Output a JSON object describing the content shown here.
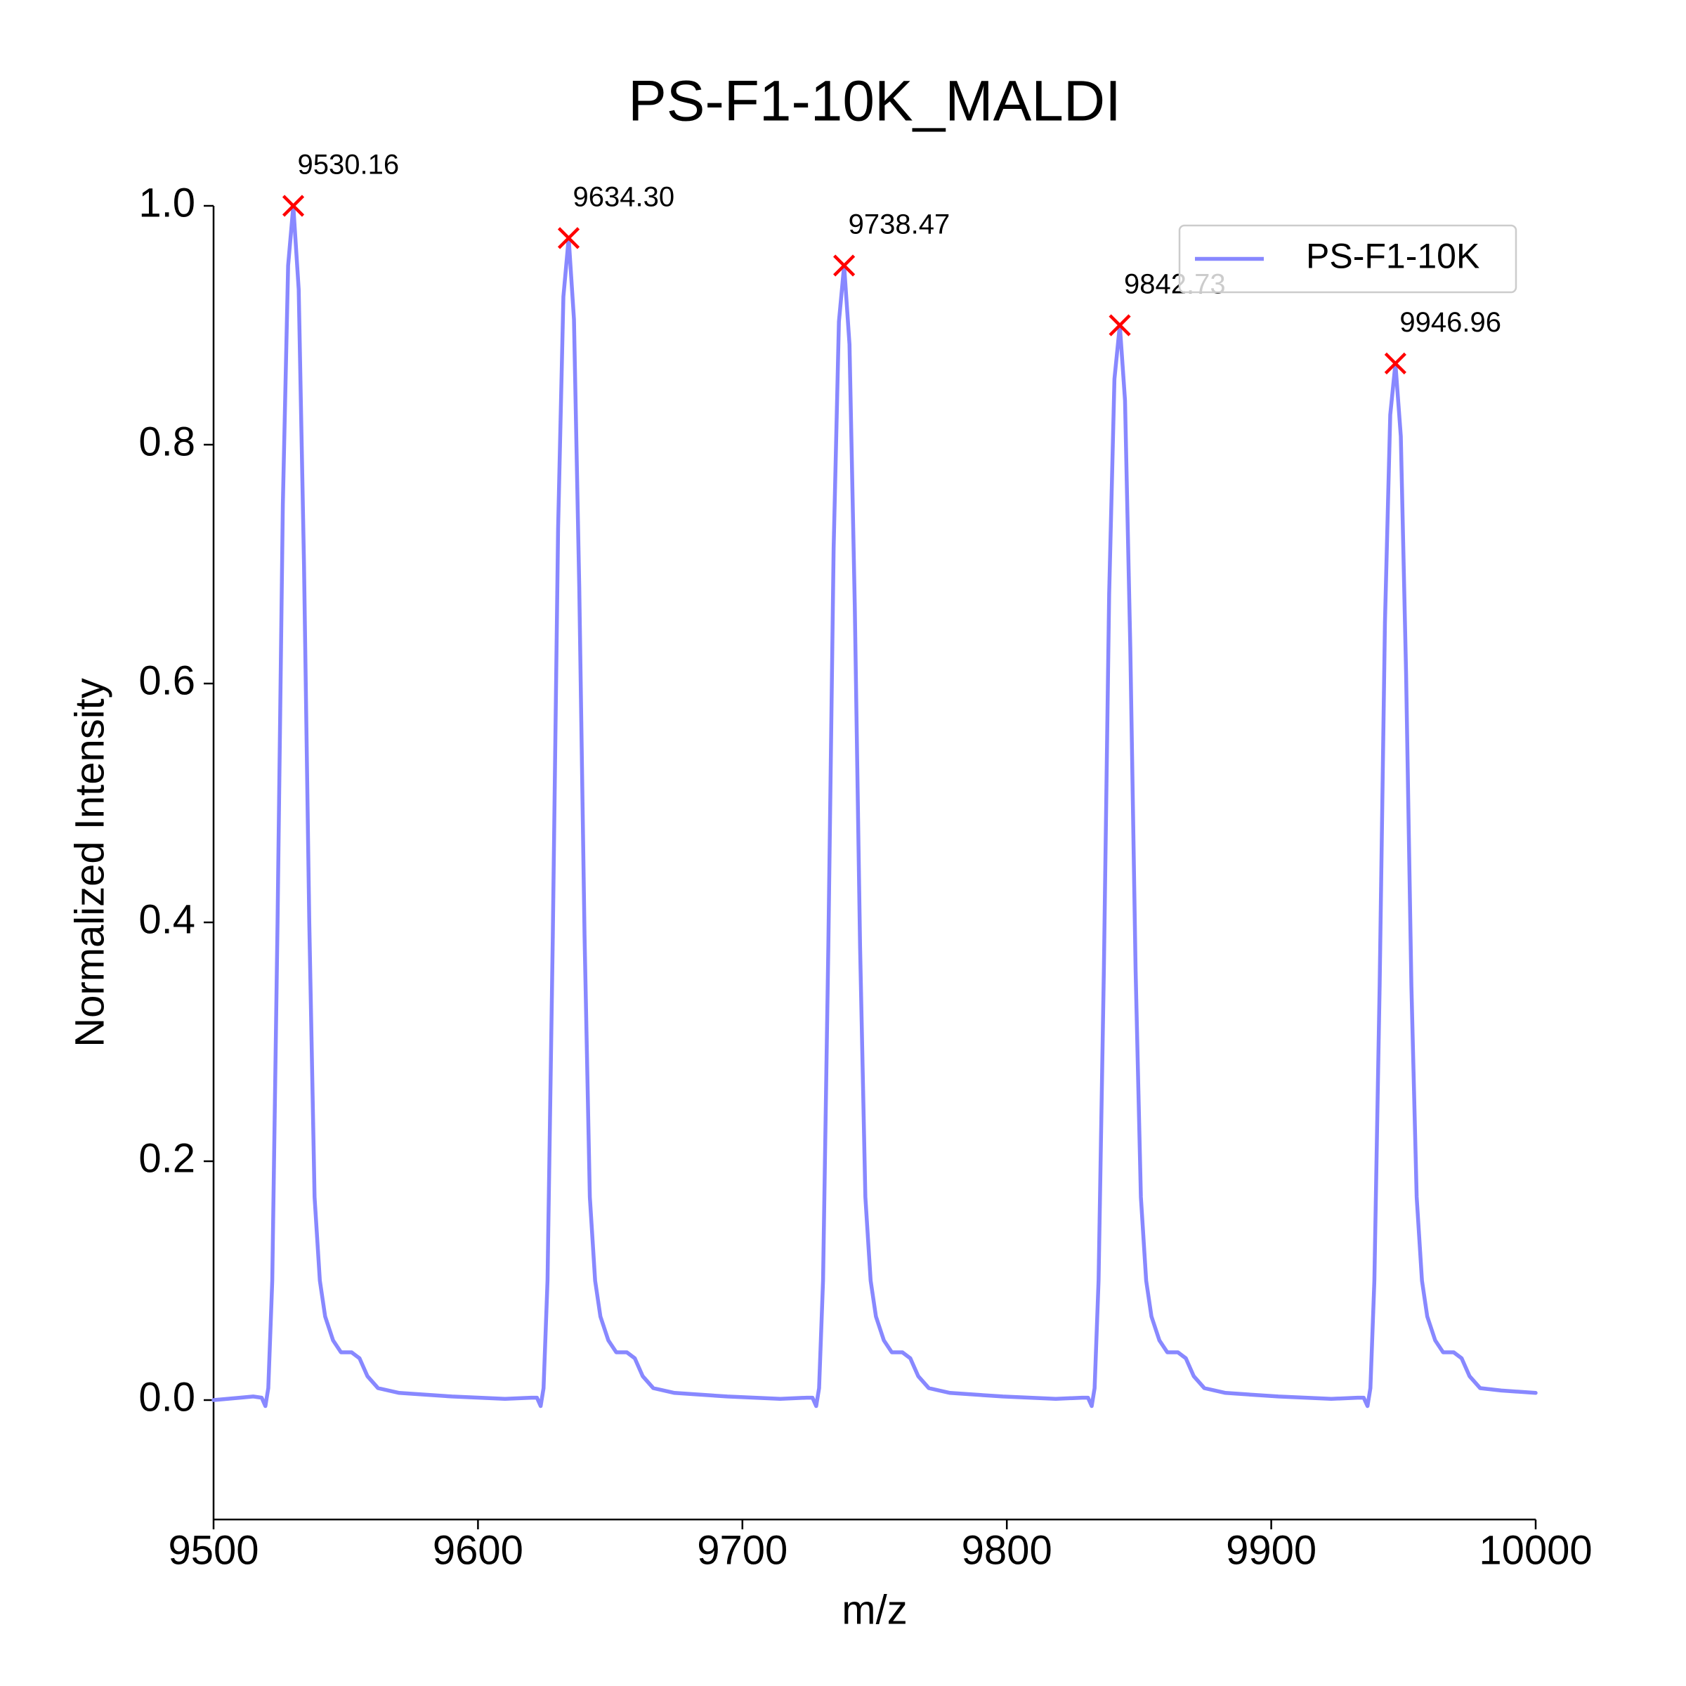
{
  "chart_data": {
    "type": "line",
    "title": "PS-F1-10K_MALDI",
    "xlabel": "m/z",
    "ylabel": "Normalized Intensity",
    "xlim": [
      9500,
      10000
    ],
    "ylim": [
      -0.1,
      1.0
    ],
    "xticks": [
      9500,
      9600,
      9700,
      9800,
      9900,
      10000
    ],
    "yticks": [
      {
        "value": 0,
        "label": "0.0"
      },
      0.2,
      0.4,
      0.6,
      0.8,
      {
        "value": 1,
        "label": "1.0"
      }
    ],
    "legend": "upper right",
    "series": [
      {
        "name": "PS-F1-10K",
        "color": "#8888ff",
        "x": [
          9500,
          9510,
          9515,
          9518.2,
          9519.6,
          9520.7,
          9522.2,
          9524.2,
          9526.2,
          9528.2,
          9530.16,
          9532.2,
          9534.2,
          9536.2,
          9538.2,
          9540.2,
          9542.2,
          9545.2,
          9548.2,
          9552.2,
          9555.2,
          9558.2,
          9562.2,
          9570.2,
          9590.2,
          9610.2,
          9620.2,
          9622.3,
          9623.7,
          9624.8,
          9626.3,
          9628.3,
          9630.3,
          9632.3,
          9634.3,
          9636.3,
          9638.3,
          9640.3,
          9642.3,
          9644.3,
          9646.3,
          9649.3,
          9652.3,
          9656.3,
          9659.3,
          9662.3,
          9666.3,
          9674.3,
          9694.3,
          9714.3,
          9724.3,
          9726.5,
          9727.9,
          9729.0,
          9730.5,
          9732.5,
          9734.5,
          9736.5,
          9738.47,
          9740.5,
          9742.5,
          9744.5,
          9746.5,
          9748.5,
          9750.5,
          9753.5,
          9756.5,
          9760.5,
          9763.5,
          9766.5,
          9770.5,
          9778.5,
          9798.5,
          9818.5,
          9828.5,
          9830.7,
          9832.1,
          9833.2,
          9834.7,
          9836.7,
          9838.7,
          9840.7,
          9842.73,
          9844.7,
          9846.7,
          9848.7,
          9850.7,
          9852.7,
          9854.7,
          9857.7,
          9860.7,
          9864.7,
          9867.7,
          9870.7,
          9874.7,
          9882.7,
          9902.7,
          9922.7,
          9932.7,
          9934.96,
          9936.4,
          9937.5,
          9939.0,
          9941.0,
          9943.0,
          9945.0,
          9946.96,
          9949.0,
          9951.0,
          9953.0,
          9955.0,
          9957.0,
          9959.0,
          9962.0,
          9965.0,
          9969.0,
          9972.0,
          9975.0,
          9979.0,
          9987.0,
          10000
        ],
        "values": [
          0.0,
          0.002,
          0.003,
          0.002,
          -0.005,
          0.01,
          0.1,
          0.4,
          0.75,
          0.95,
          1.0,
          0.93,
          0.7,
          0.4,
          0.17,
          0.1,
          0.07,
          0.05,
          0.04,
          0.04,
          0.035,
          0.02,
          0.01,
          0.006,
          0.003,
          0.001,
          0.002,
          0.002,
          -0.005,
          0.01,
          0.1,
          0.389,
          0.73,
          0.924,
          0.973,
          0.905,
          0.681,
          0.389,
          0.17,
          0.1,
          0.07,
          0.05,
          0.04,
          0.04,
          0.035,
          0.02,
          0.01,
          0.006,
          0.003,
          0.001,
          0.002,
          0.002,
          -0.005,
          0.01,
          0.1,
          0.38,
          0.713,
          0.903,
          0.95,
          0.884,
          0.665,
          0.38,
          0.17,
          0.1,
          0.07,
          0.05,
          0.04,
          0.04,
          0.035,
          0.02,
          0.01,
          0.006,
          0.003,
          0.001,
          0.002,
          0.002,
          -0.005,
          0.01,
          0.1,
          0.36,
          0.675,
          0.855,
          0.9,
          0.837,
          0.63,
          0.36,
          0.17,
          0.1,
          0.07,
          0.05,
          0.04,
          0.04,
          0.035,
          0.02,
          0.01,
          0.006,
          0.003,
          0.001,
          0.002,
          0.002,
          -0.005,
          0.01,
          0.1,
          0.347,
          0.651,
          0.825,
          0.868,
          0.807,
          0.608,
          0.347,
          0.17,
          0.1,
          0.07,
          0.05,
          0.04,
          0.04,
          0.035,
          0.02,
          0.01,
          0.008,
          0.006
        ]
      }
    ],
    "peaks": {
      "color": "#ff0000",
      "x": [
        9530.16,
        9634.3,
        9738.47,
        9842.73,
        9946.96
      ],
      "y": [
        1.0,
        0.973,
        0.95,
        0.9,
        0.868
      ],
      "labels": [
        "9530.16",
        "9634.30",
        "9738.47",
        "9842.73",
        "9946.96"
      ]
    }
  }
}
